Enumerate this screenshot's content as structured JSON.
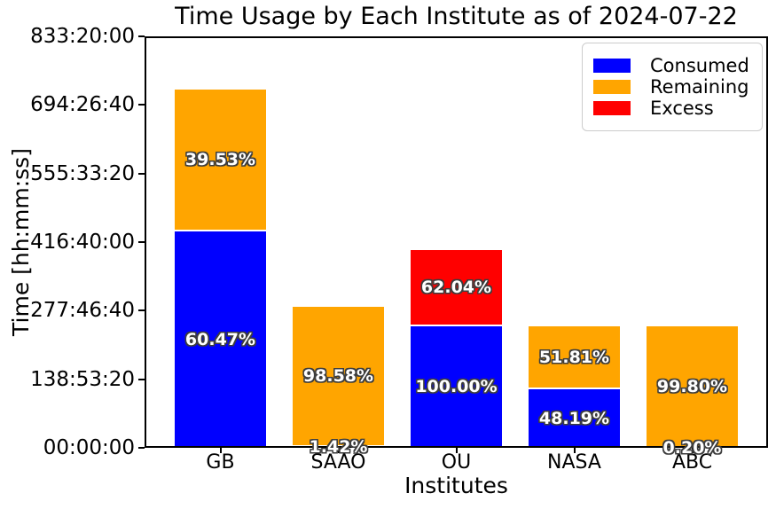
{
  "chart_data": {
    "type": "bar",
    "stacked": true,
    "title": "Time Usage by Each Institute as of 2024-07-22",
    "xlabel": "Institutes",
    "ylabel": "Time [hh:mm:ss]",
    "categories": [
      "GB",
      "SAAO",
      "OU",
      "NASA",
      "ABC"
    ],
    "y_axis": {
      "unit": "seconds",
      "min": 0,
      "max": 3000000,
      "tick_interval": 500000,
      "tick_labels": [
        "00:00:00",
        "138:53:20",
        "277:46:40",
        "416:40:00",
        "555:33:20",
        "694:26:40",
        "833:20:00"
      ]
    },
    "grid": false,
    "legend": {
      "position": "upper right",
      "entries": [
        "Consumed",
        "Remaining",
        "Excess"
      ]
    },
    "series": [
      {
        "name": "Consumed",
        "color": "#0000ff",
        "values_seconds": [
          1583700,
          14722,
          892800,
          430240,
          1786
        ],
        "percent_labels": [
          "60.47%",
          "1.42%",
          "100.00%",
          "48.19%",
          "0.20%"
        ]
      },
      {
        "name": "Remaining",
        "color": "#ffa500",
        "values_seconds": [
          1035300,
          1022078,
          0,
          462560,
          891014
        ],
        "percent_labels": [
          "39.53%",
          "98.58%",
          null,
          "51.81%",
          "99.80%"
        ]
      },
      {
        "name": "Excess",
        "color": "#ff0000",
        "values_seconds": [
          0,
          0,
          553893,
          0,
          0
        ],
        "percent_labels": [
          null,
          null,
          "62.04%",
          null,
          null
        ]
      }
    ],
    "label_style": {
      "text_color": "#ffffff",
      "outline_color": "#3d3d3d"
    }
  }
}
